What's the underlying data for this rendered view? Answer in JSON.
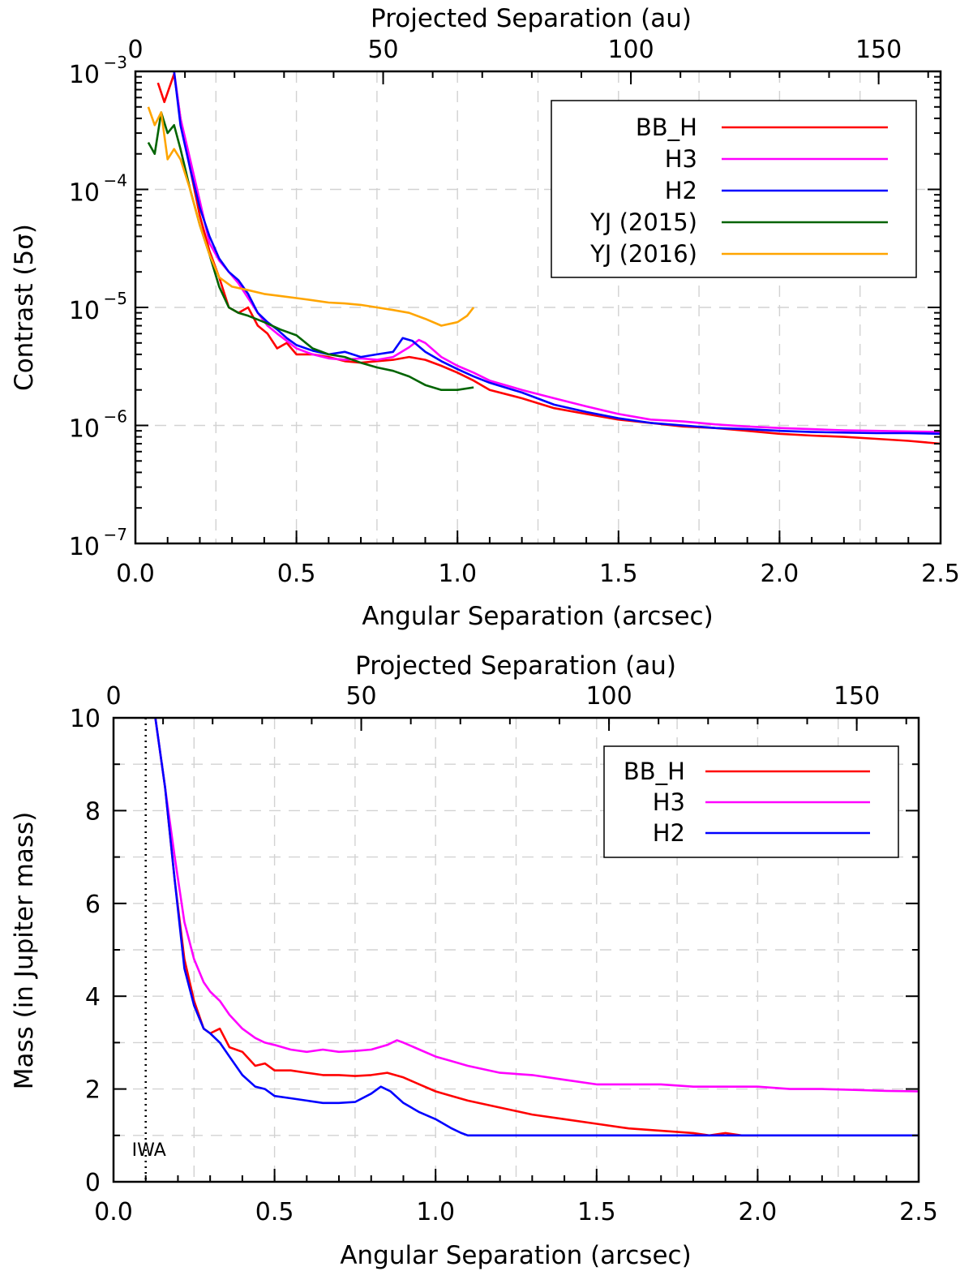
{
  "chart_data": [
    {
      "type": "line",
      "id": "contrast",
      "yscale": "log",
      "xlabel": "Angular Separation (arcsec)",
      "x2label": "Projected Separation (au)",
      "ylabel": "Contrast (5σ)",
      "xlim": [
        0,
        2.5
      ],
      "ylim": [
        1e-07,
        0.001
      ],
      "x2lim": [
        0,
        162.5
      ],
      "xticks": [
        0.0,
        0.5,
        1.0,
        1.5,
        2.0,
        2.5
      ],
      "xtick_labels": [
        "0.0",
        "0.5",
        "1.0",
        "1.5",
        "2.0",
        "2.5"
      ],
      "x2ticks": [
        0,
        50,
        100,
        150
      ],
      "x2tick_labels": [
        "0",
        "50",
        "100",
        "150"
      ],
      "yticks": [
        -7,
        -6,
        -5,
        -4,
        -3
      ],
      "ytick_labels": [
        "10",
        "10",
        "10",
        "10",
        "10"
      ],
      "ytick_exponents": [
        "−7",
        "−6",
        "−5",
        "−4",
        "−3"
      ],
      "grid": true,
      "legend_position": "top-right",
      "series": [
        {
          "name": "BB_H",
          "color": "#ff0000",
          "x": [
            0.07,
            0.09,
            0.12,
            0.14,
            0.17,
            0.2,
            0.23,
            0.26,
            0.29,
            0.32,
            0.35,
            0.38,
            0.41,
            0.44,
            0.47,
            0.5,
            0.55,
            0.6,
            0.65,
            0.7,
            0.75,
            0.8,
            0.85,
            0.9,
            0.95,
            1.0,
            1.05,
            1.1,
            1.2,
            1.3,
            1.4,
            1.5,
            1.6,
            1.7,
            1.8,
            1.9,
            2.0,
            2.1,
            2.2,
            2.3,
            2.4,
            2.5
          ],
          "y": [
            0.0008,
            0.00055,
            0.00095,
            0.0004,
            0.00015,
            6e-05,
            3e-05,
            1.8e-05,
            1e-05,
            9e-06,
            1e-05,
            7e-06,
            6e-06,
            4.5e-06,
            5e-06,
            4e-06,
            4e-06,
            3.8e-06,
            3.5e-06,
            3.4e-06,
            3.5e-06,
            3.6e-06,
            3.8e-06,
            3.6e-06,
            3.2e-06,
            2.8e-06,
            2.4e-06,
            2e-06,
            1.7e-06,
            1.4e-06,
            1.25e-06,
            1.12e-06,
            1.05e-06,
            9.8e-07,
            9.5e-07,
            9e-07,
            8.5e-07,
            8.2e-07,
            8e-07,
            7.7e-07,
            7.4e-07,
            7e-07
          ]
        },
        {
          "name": "H3",
          "color": "#ff00ff",
          "x": [
            0.12,
            0.14,
            0.17,
            0.2,
            0.23,
            0.26,
            0.29,
            0.32,
            0.35,
            0.38,
            0.41,
            0.44,
            0.47,
            0.5,
            0.55,
            0.6,
            0.65,
            0.7,
            0.75,
            0.8,
            0.85,
            0.88,
            0.9,
            0.95,
            1.0,
            1.05,
            1.1,
            1.2,
            1.3,
            1.4,
            1.5,
            1.6,
            1.7,
            1.8,
            1.9,
            2.0,
            2.1,
            2.2,
            2.3,
            2.4,
            2.5
          ],
          "y": [
            0.001,
            0.0004,
            0.00018,
            8e-05,
            3.5e-05,
            2.5e-05,
            2e-05,
            1.6e-05,
            1.2e-05,
            9e-06,
            7e-06,
            6e-06,
            5.2e-06,
            4.5e-06,
            4e-06,
            3.7e-06,
            3.6e-06,
            3.7e-06,
            3.6e-06,
            3.8e-06,
            4.6e-06,
            5.3e-06,
            5e-06,
            3.8e-06,
            3.2e-06,
            2.8e-06,
            2.4e-06,
            2e-06,
            1.7e-06,
            1.45e-06,
            1.25e-06,
            1.12e-06,
            1.08e-06,
            1.02e-06,
            9.8e-07,
            9.5e-07,
            9.3e-07,
            9.1e-07,
            9e-07,
            8.9e-07,
            8.8e-07
          ]
        },
        {
          "name": "H2",
          "color": "#0000ff",
          "x": [
            0.12,
            0.14,
            0.17,
            0.2,
            0.23,
            0.26,
            0.29,
            0.32,
            0.35,
            0.38,
            0.41,
            0.44,
            0.47,
            0.5,
            0.55,
            0.6,
            0.65,
            0.7,
            0.75,
            0.8,
            0.83,
            0.86,
            0.9,
            0.95,
            1.0,
            1.05,
            1.1,
            1.2,
            1.3,
            1.4,
            1.5,
            1.6,
            1.7,
            1.8,
            1.9,
            2.0,
            2.1,
            2.2,
            2.3,
            2.4,
            2.5
          ],
          "y": [
            0.001,
            0.00035,
            0.00015,
            7e-05,
            4e-05,
            2.6e-05,
            2e-05,
            1.7e-05,
            1.3e-05,
            9e-06,
            7.5e-06,
            6.5e-06,
            5.5e-06,
            4.8e-06,
            4.3e-06,
            4e-06,
            4.2e-06,
            3.8e-06,
            4e-06,
            4.2e-06,
            5.5e-06,
            5.2e-06,
            4.2e-06,
            3.5e-06,
            3e-06,
            2.6e-06,
            2.3e-06,
            1.9e-06,
            1.5e-06,
            1.3e-06,
            1.15e-06,
            1.05e-06,
            1e-06,
            9.5e-07,
            9.3e-07,
            9e-07,
            8.8e-07,
            8.7e-07,
            8.6e-07,
            8.6e-07,
            8.5e-07
          ]
        },
        {
          "name": "YJ (2015)",
          "color": "#006400",
          "x": [
            0.04,
            0.06,
            0.08,
            0.1,
            0.12,
            0.14,
            0.17,
            0.2,
            0.23,
            0.26,
            0.29,
            0.32,
            0.35,
            0.4,
            0.45,
            0.5,
            0.55,
            0.6,
            0.65,
            0.7,
            0.75,
            0.8,
            0.85,
            0.9,
            0.95,
            1.0,
            1.05
          ],
          "y": [
            0.00025,
            0.0002,
            0.00045,
            0.0003,
            0.00035,
            0.00022,
            0.0001,
            5e-05,
            2.8e-05,
            1.5e-05,
            1e-05,
            9e-06,
            8.5e-06,
            7.5e-06,
            6.5e-06,
            5.8e-06,
            4.5e-06,
            4e-06,
            3.8e-06,
            3.4e-06,
            3.1e-06,
            2.9e-06,
            2.6e-06,
            2.2e-06,
            2e-06,
            2e-06,
            2.1e-06
          ]
        },
        {
          "name": "YJ (2016)",
          "color": "#ffa500",
          "x": [
            0.04,
            0.06,
            0.08,
            0.1,
            0.12,
            0.14,
            0.17,
            0.2,
            0.23,
            0.26,
            0.3,
            0.35,
            0.4,
            0.45,
            0.5,
            0.55,
            0.6,
            0.65,
            0.7,
            0.75,
            0.8,
            0.85,
            0.9,
            0.95,
            1.0,
            1.03,
            1.05
          ],
          "y": [
            0.0005,
            0.00035,
            0.00045,
            0.00018,
            0.00022,
            0.00018,
            0.0001,
            5e-05,
            2.8e-05,
            1.8e-05,
            1.5e-05,
            1.4e-05,
            1.3e-05,
            1.25e-05,
            1.2e-05,
            1.15e-05,
            1.1e-05,
            1.08e-05,
            1.05e-05,
            1e-05,
            9.5e-06,
            9e-06,
            8e-06,
            7e-06,
            7.5e-06,
            8.5e-06,
            1e-05
          ]
        }
      ]
    },
    {
      "type": "line",
      "id": "mass",
      "yscale": "linear",
      "xlabel": "Angular Separation (arcsec)",
      "x2label": "Projected Separation (au)",
      "ylabel": "Mass (in Jupiter mass)",
      "xlim": [
        0,
        2.5
      ],
      "ylim": [
        0,
        10
      ],
      "x2lim": [
        0,
        162.5
      ],
      "xticks": [
        0.0,
        0.5,
        1.0,
        1.5,
        2.0,
        2.5
      ],
      "xtick_labels": [
        "0.0",
        "0.5",
        "1.0",
        "1.5",
        "2.0",
        "2.5"
      ],
      "x2ticks": [
        0,
        50,
        100,
        150
      ],
      "x2tick_labels": [
        "0",
        "50",
        "100",
        "150"
      ],
      "yticks": [
        0,
        2,
        4,
        6,
        8,
        10
      ],
      "ytick_labels": [
        "0",
        "2",
        "4",
        "6",
        "8",
        "10"
      ],
      "grid": true,
      "legend_position": "top-right",
      "annotation": {
        "text": "IWA",
        "x": 0.1
      },
      "series": [
        {
          "name": "BB_H",
          "color": "#ff0000",
          "x": [
            0.13,
            0.16,
            0.19,
            0.22,
            0.25,
            0.28,
            0.3,
            0.33,
            0.36,
            0.4,
            0.44,
            0.47,
            0.5,
            0.55,
            0.6,
            0.65,
            0.7,
            0.75,
            0.8,
            0.85,
            0.9,
            0.95,
            1.0,
            1.05,
            1.1,
            1.2,
            1.3,
            1.4,
            1.5,
            1.6,
            1.7,
            1.8,
            1.85,
            1.9,
            1.95,
            2.0
          ],
          "y": [
            10,
            8.5,
            6.5,
            4.8,
            3.9,
            3.3,
            3.2,
            3.3,
            2.9,
            2.8,
            2.5,
            2.55,
            2.4,
            2.4,
            2.35,
            2.3,
            2.3,
            2.28,
            2.3,
            2.35,
            2.25,
            2.1,
            1.95,
            1.85,
            1.75,
            1.6,
            1.45,
            1.35,
            1.25,
            1.15,
            1.1,
            1.05,
            1.0,
            1.05,
            1.0,
            1.0
          ]
        },
        {
          "name": "H3",
          "color": "#ff00ff",
          "x": [
            0.13,
            0.16,
            0.19,
            0.22,
            0.25,
            0.28,
            0.3,
            0.33,
            0.36,
            0.4,
            0.44,
            0.47,
            0.5,
            0.55,
            0.6,
            0.65,
            0.7,
            0.75,
            0.8,
            0.85,
            0.88,
            0.9,
            0.95,
            1.0,
            1.05,
            1.1,
            1.2,
            1.3,
            1.4,
            1.5,
            1.6,
            1.7,
            1.8,
            1.9,
            2.0,
            2.1,
            2.2,
            2.3,
            2.4,
            2.5
          ],
          "y": [
            10,
            8.5,
            7.0,
            5.6,
            4.8,
            4.3,
            4.1,
            3.9,
            3.6,
            3.3,
            3.1,
            3.0,
            2.95,
            2.85,
            2.8,
            2.85,
            2.8,
            2.82,
            2.85,
            2.95,
            3.05,
            3.0,
            2.85,
            2.7,
            2.6,
            2.5,
            2.35,
            2.3,
            2.2,
            2.1,
            2.1,
            2.1,
            2.05,
            2.05,
            2.05,
            2.0,
            2.0,
            1.98,
            1.96,
            1.95
          ]
        },
        {
          "name": "H2",
          "color": "#0000ff",
          "x": [
            0.13,
            0.16,
            0.19,
            0.22,
            0.25,
            0.28,
            0.3,
            0.33,
            0.36,
            0.4,
            0.44,
            0.47,
            0.5,
            0.55,
            0.6,
            0.65,
            0.7,
            0.75,
            0.8,
            0.83,
            0.86,
            0.9,
            0.95,
            1.0,
            1.05,
            1.08,
            1.1,
            1.2,
            1.3,
            1.5,
            1.7,
            1.9,
            2.1,
            2.3,
            2.5
          ],
          "y": [
            10,
            8.5,
            6.5,
            4.6,
            3.8,
            3.3,
            3.2,
            3.0,
            2.7,
            2.3,
            2.05,
            2.0,
            1.85,
            1.8,
            1.75,
            1.7,
            1.7,
            1.72,
            1.9,
            2.05,
            1.95,
            1.7,
            1.5,
            1.35,
            1.15,
            1.05,
            1.0,
            1.0,
            1.0,
            1.0,
            1.0,
            1.0,
            1.0,
            1.0,
            1.0
          ]
        }
      ]
    }
  ]
}
